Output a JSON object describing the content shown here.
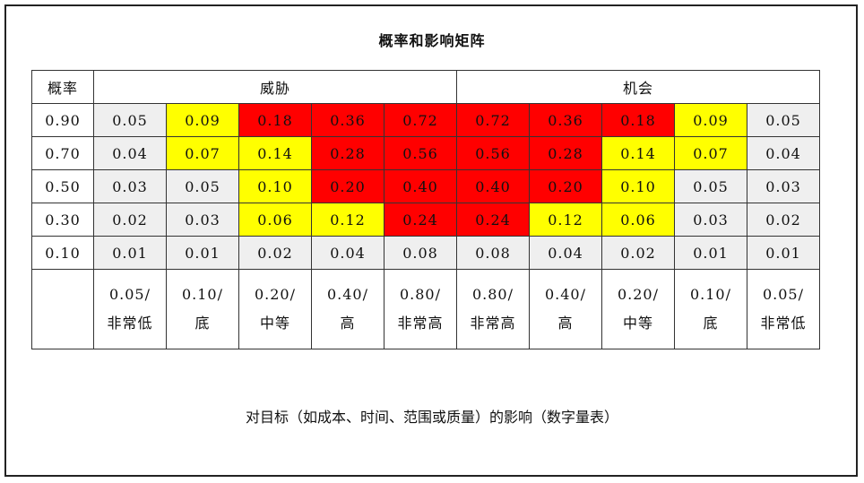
{
  "chart_data": {
    "type": "heatmap",
    "title": "概率和影响矩阵",
    "corner_label": "概率",
    "group_labels": {
      "threat": "威胁",
      "opportunity": "机会"
    },
    "probabilities": [
      "0.90",
      "0.70",
      "0.50",
      "0.30",
      "0.10"
    ],
    "impacts": [
      {
        "value": "0.05/",
        "level": "非常低"
      },
      {
        "value": "0.10/",
        "level": "底"
      },
      {
        "value": "0.20/",
        "level": "中等"
      },
      {
        "value": "0.40/",
        "level": "高"
      },
      {
        "value": "0.80/",
        "level": "非常高"
      },
      {
        "value": "0.80/",
        "level": "非常高"
      },
      {
        "value": "0.40/",
        "level": "高"
      },
      {
        "value": "0.20/",
        "level": "中等"
      },
      {
        "value": "0.10/",
        "level": "底"
      },
      {
        "value": "0.05/",
        "level": "非常低"
      }
    ],
    "values": [
      [
        "0.05",
        "0.09",
        "0.18",
        "0.36",
        "0.72",
        "0.72",
        "0.36",
        "0.18",
        "0.09",
        "0.05"
      ],
      [
        "0.04",
        "0.07",
        "0.14",
        "0.28",
        "0.56",
        "0.56",
        "0.28",
        "0.14",
        "0.07",
        "0.04"
      ],
      [
        "0.03",
        "0.05",
        "0.10",
        "0.20",
        "0.40",
        "0.40",
        "0.20",
        "0.10",
        "0.05",
        "0.03"
      ],
      [
        "0.02",
        "0.03",
        "0.06",
        "0.12",
        "0.24",
        "0.24",
        "0.12",
        "0.06",
        "0.03",
        "0.02"
      ],
      [
        "0.01",
        "0.01",
        "0.02",
        "0.04",
        "0.08",
        "0.08",
        "0.04",
        "0.02",
        "0.01",
        "0.01"
      ]
    ],
    "zones": [
      [
        "grey",
        "yellow",
        "red",
        "red",
        "red",
        "red",
        "red",
        "red",
        "yellow",
        "grey"
      ],
      [
        "grey",
        "yellow",
        "yellow",
        "red",
        "red",
        "red",
        "red",
        "yellow",
        "yellow",
        "grey"
      ],
      [
        "grey",
        "grey",
        "yellow",
        "red",
        "red",
        "red",
        "red",
        "yellow",
        "grey",
        "grey"
      ],
      [
        "grey",
        "grey",
        "yellow",
        "yellow",
        "red",
        "red",
        "yellow",
        "yellow",
        "grey",
        "grey"
      ],
      [
        "grey",
        "grey",
        "grey",
        "grey",
        "grey",
        "grey",
        "grey",
        "grey",
        "grey",
        "grey"
      ]
    ],
    "colors": {
      "red": "#ff0000",
      "yellow": "#ffff00",
      "grey": "#efefef"
    },
    "caption": "对目标（如成本、时间、范围或质量）的影响（数字量表）"
  }
}
